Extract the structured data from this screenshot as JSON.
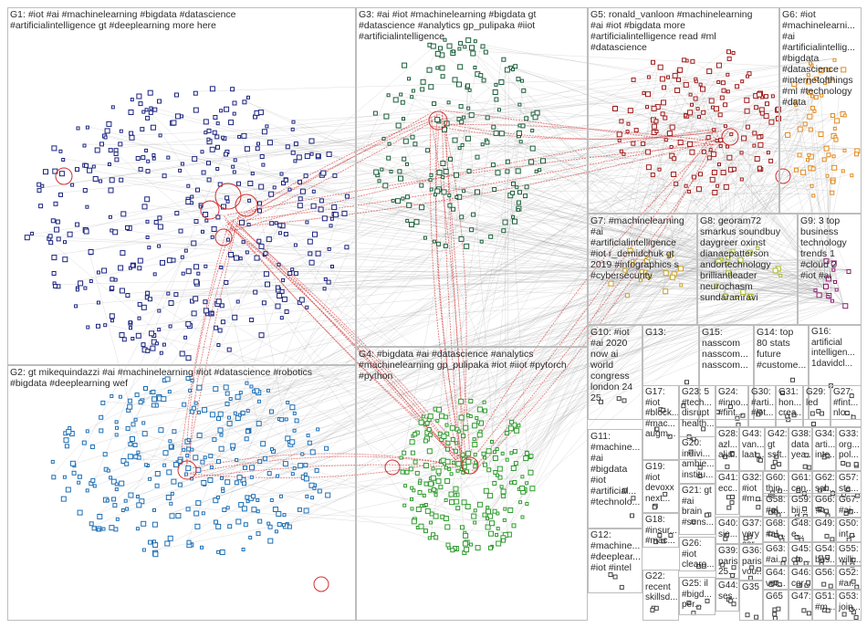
{
  "groups": [
    {
      "id": "G1",
      "label": "G1: #iot #ai #machinelearning #bigdata #datascience\n#artificialintelligence gt #deeplearning more here",
      "color": "#1a237e"
    },
    {
      "id": "G2",
      "label": "G2: gt mikequindazzi #ai #machinelearning #iot #datascience #robotics\n#bigdata #deeplearning wef",
      "color": "#1e6fb5"
    },
    {
      "id": "G3",
      "label": "G3: #ai #iot #machinelearning #bigdata gt\n#datascience #analytics gp_pulipaka #iiot\n#artificialintelligence",
      "color": "#1b5e3a"
    },
    {
      "id": "G4",
      "label": "G4: #bigdata #ai #datascience #analytics\n#machinelearning gp_pulipaka #iot #iiot #pytorch\n#python",
      "color": "#2e9b2e"
    },
    {
      "id": "G5",
      "label": "G5: ronald_vanloon #machinelearning\n#ai #iot #bigdata more\n#artificialintelligence read #ml\n#datascience",
      "color": "#9e1b1b"
    },
    {
      "id": "G6",
      "label": "G6: #iot\n#machinelearni...\n#ai\n#artificialintellig...\n#bigdata\n#datascience\n#internetofthings\n#ml #technology\n#data",
      "color": "#e08a1e"
    },
    {
      "id": "G7",
      "label": "G7: #machinelearning\n#ai\n#artificialintelligence\n#iot r_demidchuk gt\n2019 #infographics s\n#cybersecurity",
      "color": "#c9a227"
    },
    {
      "id": "G8",
      "label": "G8: georam72\nsmarkus soundbuy\ndaygreer oxinst\ndianaepatterson\nandortechnology\nbrilliantleader\nneurochasm\nsundaramravi",
      "color": "#a8b820"
    },
    {
      "id": "G9",
      "label": "G9: 3 top\nbusiness\ntechnology\ntrends 1\n#cloud 2\n#iot #ai",
      "color": "#8e1f6e"
    },
    {
      "id": "G10",
      "label": "G10: #iot\n#ai 2020\nnow ai\nworld\ncongress\nlondon 24\n25",
      "color": "#555555"
    },
    {
      "id": "G13",
      "label": "G13:",
      "color": "#555555"
    },
    {
      "id": "G15",
      "label": "G15:\nnasscom\nnasscom...\nnasscom...",
      "color": "#555555"
    },
    {
      "id": "G14",
      "label": "G14: top\n80 stats\nfuture\n#custome...",
      "color": "#555555"
    },
    {
      "id": "G16",
      "label": "G16:\nartificial\nintelligen...\n1davidcl...",
      "color": "#555555"
    },
    {
      "id": "G17",
      "label": "G17:\n#iot\n#block...\n#mac...\naugm...",
      "color": "#555555"
    },
    {
      "id": "G23",
      "label": "G23: 5\n#tech...\ndisrupt\nhealth...",
      "color": "#555555"
    },
    {
      "id": "G24",
      "label": "G24:\n#inno...\n#fint...",
      "color": "#555555"
    },
    {
      "id": "G30",
      "label": "G30:\n#arti...\n#iot...",
      "color": "#555555"
    },
    {
      "id": "G31",
      "label": "G31:\nhon...\ncrea...",
      "color": "#555555"
    },
    {
      "id": "G29",
      "label": "G29:\nled",
      "color": "#555555"
    },
    {
      "id": "G27",
      "label": "G27:\n#fint...\nnlo...",
      "color": "#555555"
    },
    {
      "id": "G11",
      "label": "G11:\n#machine...\n#ai\n#bigdata\n#iot\n#artificial...\n#technolo...",
      "color": "#555555"
    },
    {
      "id": "G20",
      "label": "G20:\nindivi...\nambie...\ninstitu...",
      "color": "#555555"
    },
    {
      "id": "G28",
      "label": "G28:\nazl...\nalia...",
      "color": "#555555"
    },
    {
      "id": "G43",
      "label": "G43:\nvan...\nlaat...",
      "color": "#555555"
    },
    {
      "id": "G42",
      "label": "G42:\ngt\nssft...",
      "color": "#555555"
    },
    {
      "id": "G38",
      "label": "G38:\ndata\nyea...",
      "color": "#555555"
    },
    {
      "id": "G34",
      "label": "G34:\narti...\ninte...",
      "color": "#555555"
    },
    {
      "id": "G33",
      "label": "G33:\norg...\npol...",
      "color": "#555555"
    },
    {
      "id": "G19",
      "label": "G19:\n#iot\ndevoxx\nnext...",
      "color": "#555555"
    },
    {
      "id": "G21",
      "label": "G21: gt\n#ai\nbrain\n#sens...",
      "color": "#555555"
    },
    {
      "id": "G41",
      "label": "G41:\necc...",
      "color": "#555555"
    },
    {
      "id": "G32",
      "label": "G32:\n#iot\n#m...",
      "color": "#555555"
    },
    {
      "id": "G60",
      "label": "G60:\nthin...",
      "color": "#555555"
    },
    {
      "id": "G61",
      "label": "G61:\ncen...",
      "color": "#555555"
    },
    {
      "id": "G62",
      "label": "G62:\nsal...",
      "color": "#555555"
    },
    {
      "id": "G57",
      "label": "G57:\nsta...",
      "color": "#555555"
    },
    {
      "id": "G58",
      "label": "G58:\n#al...",
      "color": "#555555"
    },
    {
      "id": "G59",
      "label": "G59:\nbij...",
      "color": "#555555"
    },
    {
      "id": "G66",
      "label": "G66:\nफ़...",
      "color": "#555555"
    },
    {
      "id": "G67",
      "label": "G67:\n#ai...",
      "color": "#555555"
    },
    {
      "id": "G12",
      "label": "G12:\n#machine...\n#deeplear...\n#iot #intel",
      "color": "#555555"
    },
    {
      "id": "G18",
      "label": "G18:\n#insur...\n#mac...",
      "color": "#555555"
    },
    {
      "id": "G40",
      "label": "G40:\nsie...",
      "color": "#555555"
    },
    {
      "id": "G37",
      "label": "G37:\nvery\ncar...",
      "color": "#555555"
    },
    {
      "id": "G68",
      "label": "G68:\n#al...",
      "color": "#555555"
    },
    {
      "id": "G48",
      "label": "G48:\ne...",
      "color": "#555555"
    },
    {
      "id": "G49",
      "label": "G49:\n",
      "color": "#555555"
    },
    {
      "id": "G50",
      "label": "G50:\nint...",
      "color": "#555555"
    },
    {
      "id": "G26",
      "label": "G26:\n#iot\nclearo...",
      "color": "#555555"
    },
    {
      "id": "G39",
      "label": "G39:\nparis\n25...",
      "color": "#555555"
    },
    {
      "id": "G36",
      "label": "G36:\nparis\nvou...",
      "color": "#555555"
    },
    {
      "id": "G63",
      "label": "G63:\n#ai...",
      "color": "#555555"
    },
    {
      "id": "G45",
      "label": "G45:\nclo...",
      "color": "#555555"
    },
    {
      "id": "G54",
      "label": "G54:\nbus...",
      "color": "#555555"
    },
    {
      "id": "G55",
      "label": "G55:\nwilli...",
      "color": "#555555"
    },
    {
      "id": "G22",
      "label": "G22:\nrecent\nskillsd...",
      "color": "#555555"
    },
    {
      "id": "G44",
      "label": "G44:\nses...",
      "color": "#555555"
    },
    {
      "id": "G64",
      "label": "G64:\nver...",
      "color": "#555555"
    },
    {
      "id": "G46",
      "label": "G46:\ncor...",
      "color": "#555555"
    },
    {
      "id": "G56",
      "label": "G56:\n",
      "color": "#555555"
    },
    {
      "id": "G52",
      "label": "G52:\n#ar...",
      "color": "#555555"
    },
    {
      "id": "G25",
      "label": "G25: il\n#bigd...\nper...",
      "color": "#555555"
    },
    {
      "id": "G35",
      "label": "G35",
      "color": "#555555"
    },
    {
      "id": "G65",
      "label": "G65",
      "color": "#555555"
    },
    {
      "id": "G47",
      "label": "G47:",
      "color": "#555555"
    },
    {
      "id": "G51",
      "label": "G51:\n#m...",
      "color": "#555555"
    },
    {
      "id": "G53",
      "label": "G53:\njoin...",
      "color": "#555555"
    }
  ]
}
